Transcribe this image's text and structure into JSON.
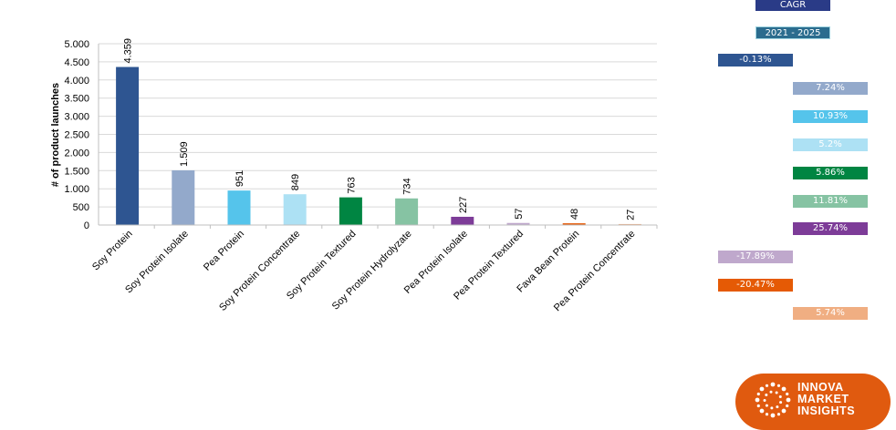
{
  "chart_data": {
    "type": "bar",
    "ylabel": "# of product launches",
    "ylim": [
      0,
      5000
    ],
    "yticks": [
      0,
      500,
      1000,
      1500,
      2000,
      2500,
      3000,
      3500,
      4000,
      4500,
      5000
    ],
    "ytick_labels": [
      "0",
      "500",
      "1.000",
      "1.500",
      "2.000",
      "2.500",
      "3.000",
      "3.500",
      "4.000",
      "4.500",
      "5.000"
    ],
    "grid": true,
    "categories": [
      "Soy Protein",
      "Soy Protein Isolate",
      "Pea Protein",
      "Soy Protein Concentrate",
      "Soy Protein Textured",
      "Soy Protein Hydrolyzate",
      "Pea Protein Isolate",
      "Pea Protein Textured",
      "Fava Bean Protein",
      "Pea Protein Concentrate"
    ],
    "values": [
      4359,
      1509,
      951,
      849,
      763,
      734,
      227,
      57,
      48,
      27
    ],
    "data_labels": [
      "4.359",
      "1.509",
      "951",
      "849",
      "763",
      "734",
      "227",
      "57",
      "48",
      "27"
    ],
    "colors": [
      "#2e5591",
      "#93a9cb",
      "#55c4eb",
      "#ade1f4",
      "#008542",
      "#86c3a3",
      "#7d3c98",
      "#bfa8cc",
      "#e55a05",
      "#f0ae82"
    ]
  },
  "cagr": {
    "header": "CAGR",
    "period": "2021 - 2025",
    "values": [
      -0.13,
      7.24,
      10.93,
      5.2,
      5.86,
      11.81,
      25.74,
      -17.89,
      -20.47,
      5.74
    ],
    "labels": [
      "-0.13%",
      "7.24%",
      "10.93%",
      "5.2%",
      "5.86%",
      "11.81%",
      "25.74%",
      "-17.89%",
      "-20.47%",
      "5.74%"
    ]
  },
  "logo": {
    "line1": "INNOVA",
    "line2": "MARKET",
    "line3": "INSIGHTS"
  }
}
